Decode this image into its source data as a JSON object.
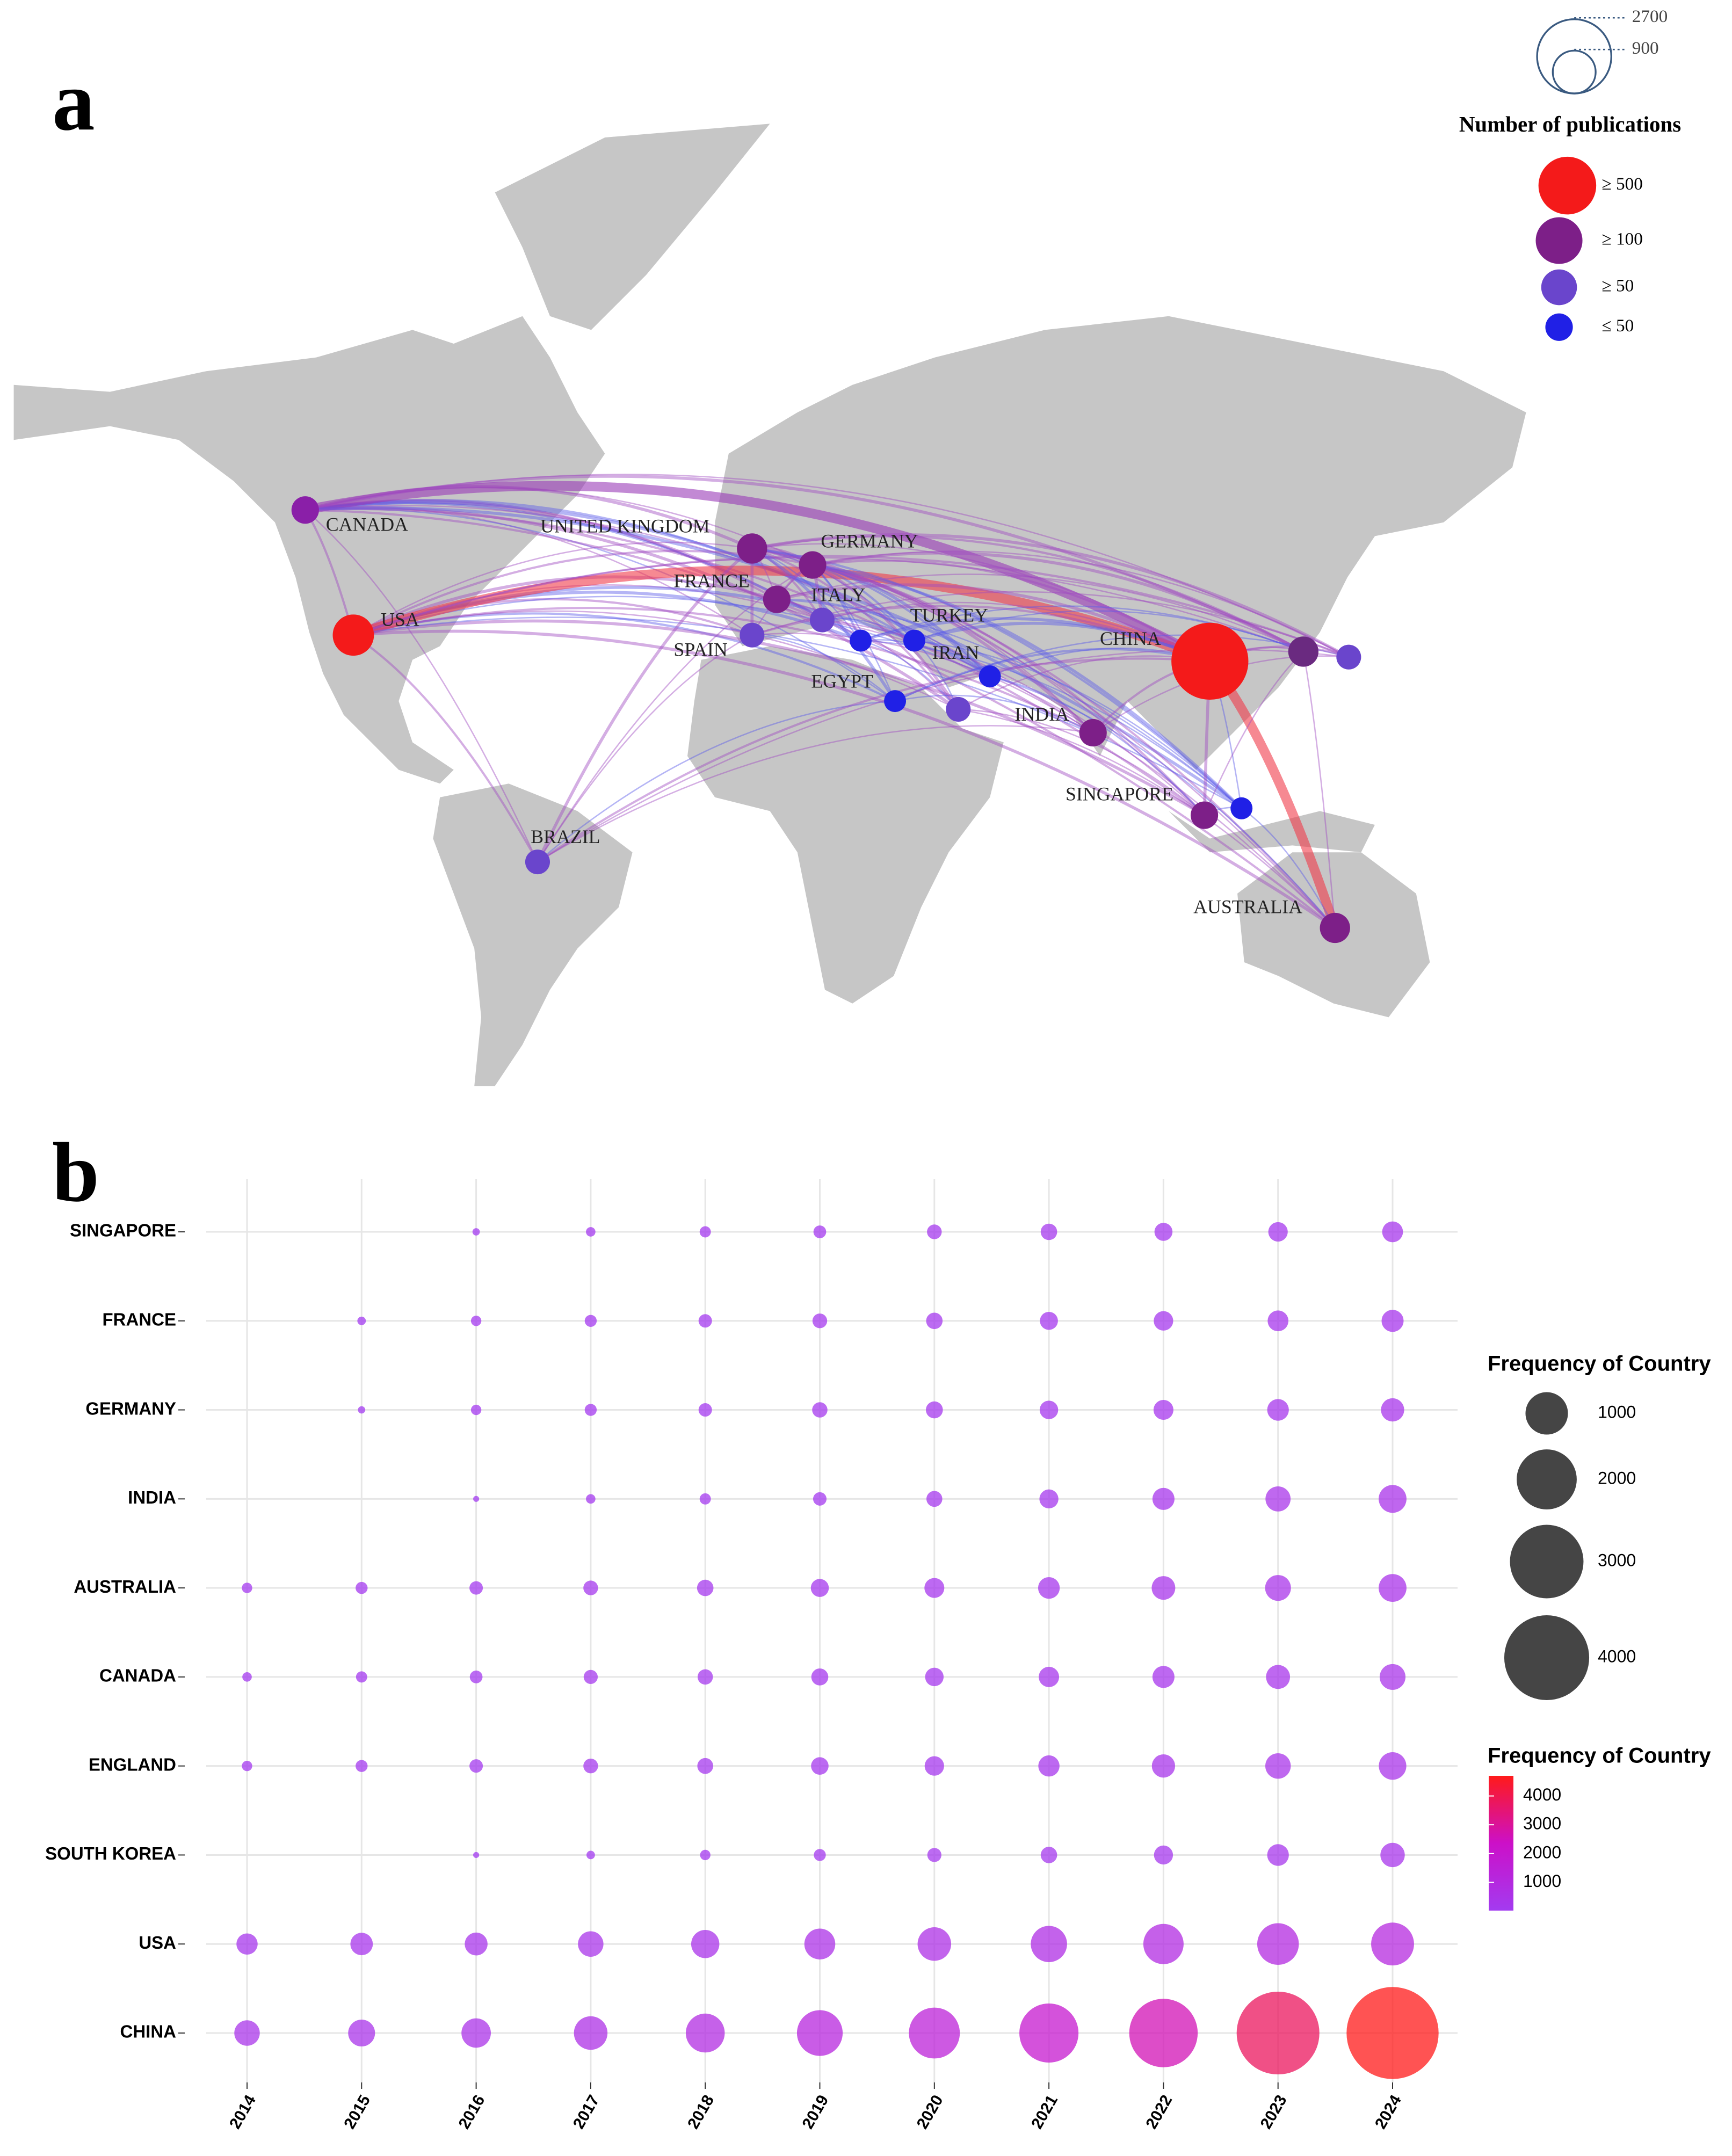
{
  "panel_a": {
    "label": "a",
    "size_legend": [
      2700,
      900
    ],
    "legend_title": "Number of publications",
    "legend_items": [
      "≥ 500",
      "≥ 100",
      "≥ 50",
      "≤ 50"
    ],
    "countries": [
      "CANADA",
      "USA",
      "UNITED KINGDOM",
      "GERMANY",
      "FRANCE",
      "ITALY",
      "SPAIN",
      "TURKEY",
      "IRAN",
      "EGYPT",
      "INDIA",
      "CHINA",
      "SINGAPORE",
      "BRAZIL",
      "AUSTRALIA"
    ]
  },
  "panel_b": {
    "label": "b"
  },
  "chart_data": {
    "type": "bubble",
    "categories": [
      "2014",
      "2015",
      "2016",
      "2017",
      "2018",
      "2019",
      "2020",
      "2021",
      "2022",
      "2023",
      "2024"
    ],
    "series": [
      {
        "name": "SINGAPORE",
        "values": [
          null,
          null,
          30,
          50,
          70,
          90,
          120,
          150,
          180,
          210,
          240
        ]
      },
      {
        "name": "FRANCE",
        "values": [
          null,
          40,
          60,
          80,
          100,
          120,
          150,
          180,
          210,
          240,
          270
        ]
      },
      {
        "name": "GERMANY",
        "values": [
          null,
          30,
          60,
          80,
          100,
          130,
          160,
          190,
          220,
          260,
          300
        ]
      },
      {
        "name": "INDIA",
        "values": [
          null,
          null,
          20,
          50,
          70,
          100,
          140,
          200,
          270,
          350,
          430
        ]
      },
      {
        "name": "AUSTRALIA",
        "values": [
          60,
          80,
          100,
          120,
          150,
          180,
          220,
          260,
          310,
          370,
          430
        ]
      },
      {
        "name": "CANADA",
        "values": [
          50,
          70,
          90,
          110,
          130,
          160,
          190,
          230,
          270,
          320,
          370
        ]
      },
      {
        "name": "ENGLAND",
        "values": [
          60,
          80,
          100,
          120,
          140,
          170,
          210,
          250,
          300,
          360,
          420
        ]
      },
      {
        "name": "SOUTH KOREA",
        "values": [
          null,
          null,
          20,
          40,
          60,
          80,
          110,
          150,
          200,
          260,
          330
        ]
      },
      {
        "name": "USA",
        "values": [
          250,
          280,
          290,
          360,
          440,
          530,
          625,
          730,
          900,
          960,
          1020
        ]
      },
      {
        "name": "CHINA",
        "values": [
          360,
          400,
          480,
          625,
          840,
          1160,
          1440,
          1940,
          2600,
          3800,
          4700
        ]
      }
    ],
    "size_legend_title": "Frequency of Country",
    "size_legend_values": [
      1000,
      2000,
      3000,
      4000
    ],
    "color_legend_title": "Frequency of Country",
    "colorbar_ticks": [
      1000,
      2000,
      3000,
      4000
    ],
    "colors": [
      "#a33bf0",
      "#cc10c8",
      "#ff1a1a"
    ],
    "grid": true
  }
}
